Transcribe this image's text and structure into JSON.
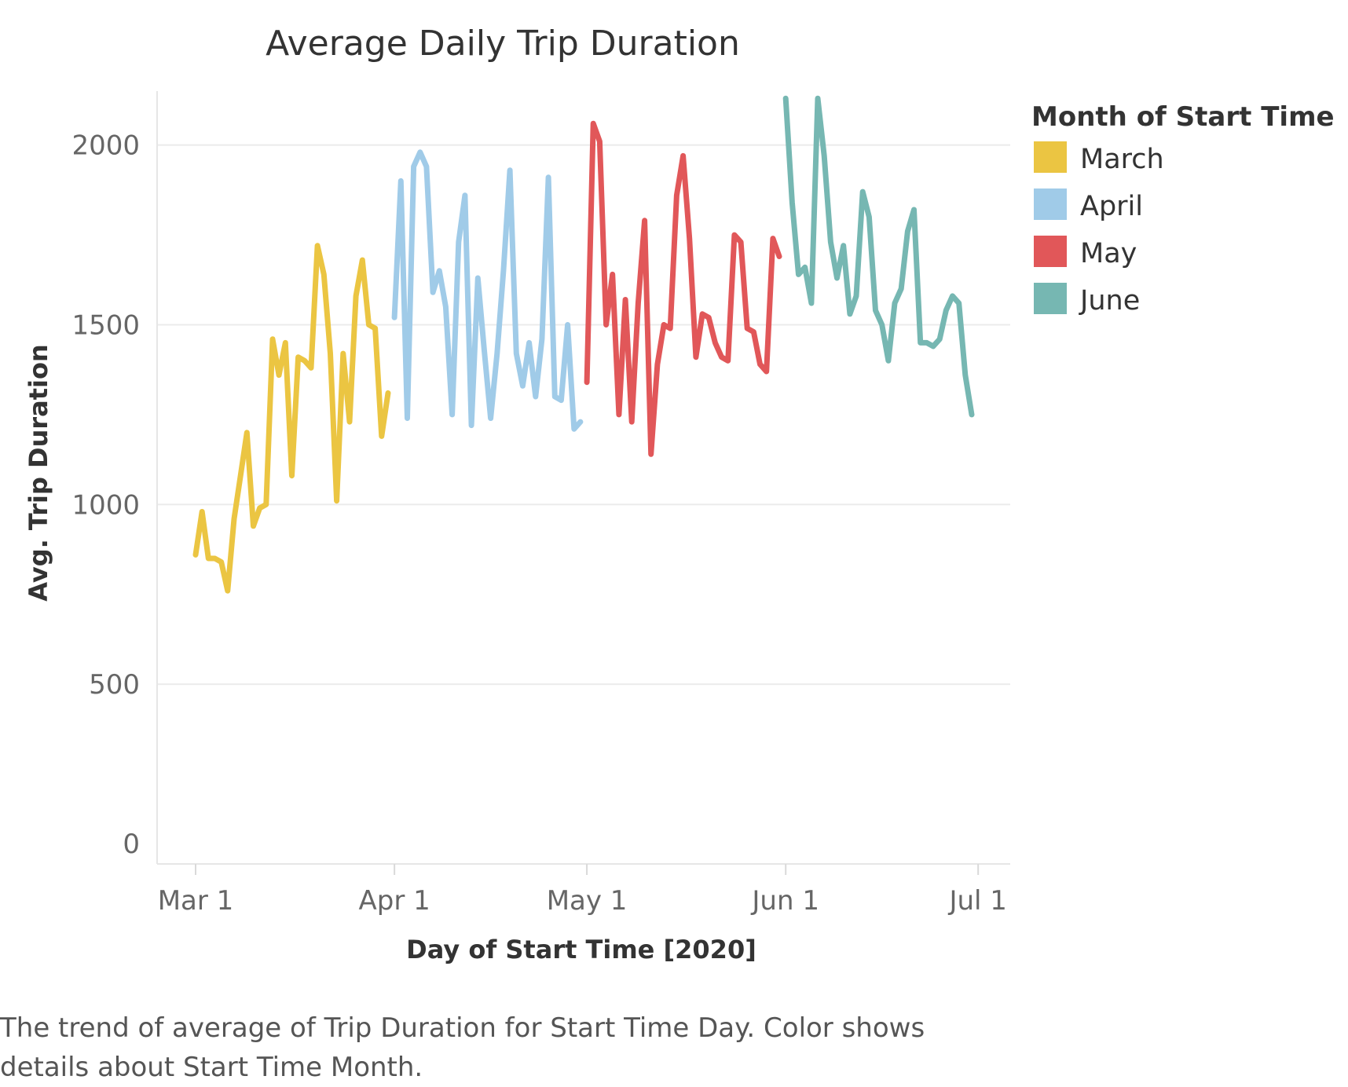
{
  "caption": "The trend of average of Trip Duration for Start Time Day.  Color shows details about Start Time Month.",
  "legend": {
    "title": "Month of Start Time",
    "items": [
      {
        "label": "March",
        "color": "#EBC542"
      },
      {
        "label": "April",
        "color": "#A0CBE8"
      },
      {
        "label": "May",
        "color": "#E15759"
      },
      {
        "label": "June",
        "color": "#76B7B2"
      }
    ]
  },
  "chart_data": {
    "type": "line",
    "title": "Average Daily Trip Duration",
    "xlabel": "Day of Start Time [2020]",
    "ylabel": "Avg. Trip Duration",
    "x_ticks": [
      "Mar 1",
      "Apr 1",
      "May 1",
      "Jun 1",
      "Jul 1"
    ],
    "x_tick_dates": [
      "2020-03-01",
      "2020-04-01",
      "2020-05-01",
      "2020-06-01",
      "2020-07-01"
    ],
    "y_ticks": [
      0,
      500,
      1000,
      1500,
      2000
    ],
    "ylim": [
      0,
      2150
    ],
    "xlim": [
      "2020-02-24",
      "2020-07-06"
    ],
    "grid": true,
    "legend_position": "right",
    "series": [
      {
        "name": "March",
        "color": "#EBC542",
        "points": [
          [
            "2020-03-01",
            860
          ],
          [
            "2020-03-02",
            980
          ],
          [
            "2020-03-03",
            850
          ],
          [
            "2020-03-04",
            850
          ],
          [
            "2020-03-05",
            840
          ],
          [
            "2020-03-06",
            760
          ],
          [
            "2020-03-07",
            960
          ],
          [
            "2020-03-08",
            1080
          ],
          [
            "2020-03-09",
            1200
          ],
          [
            "2020-03-10",
            940
          ],
          [
            "2020-03-11",
            990
          ],
          [
            "2020-03-12",
            1000
          ],
          [
            "2020-03-13",
            1460
          ],
          [
            "2020-03-14",
            1360
          ],
          [
            "2020-03-15",
            1450
          ],
          [
            "2020-03-16",
            1080
          ],
          [
            "2020-03-17",
            1410
          ],
          [
            "2020-03-18",
            1400
          ],
          [
            "2020-03-19",
            1380
          ],
          [
            "2020-03-20",
            1720
          ],
          [
            "2020-03-21",
            1640
          ],
          [
            "2020-03-22",
            1420
          ],
          [
            "2020-03-23",
            1010
          ],
          [
            "2020-03-24",
            1420
          ],
          [
            "2020-03-25",
            1230
          ],
          [
            "2020-03-26",
            1580
          ],
          [
            "2020-03-27",
            1680
          ],
          [
            "2020-03-28",
            1500
          ],
          [
            "2020-03-29",
            1490
          ],
          [
            "2020-03-30",
            1190
          ],
          [
            "2020-03-31",
            1310
          ]
        ]
      },
      {
        "name": "April",
        "color": "#A0CBE8",
        "points": [
          [
            "2020-04-01",
            1520
          ],
          [
            "2020-04-02",
            1900
          ],
          [
            "2020-04-03",
            1240
          ],
          [
            "2020-04-04",
            1940
          ],
          [
            "2020-04-05",
            1980
          ],
          [
            "2020-04-06",
            1940
          ],
          [
            "2020-04-07",
            1590
          ],
          [
            "2020-04-08",
            1650
          ],
          [
            "2020-04-09",
            1550
          ],
          [
            "2020-04-10",
            1250
          ],
          [
            "2020-04-11",
            1730
          ],
          [
            "2020-04-12",
            1860
          ],
          [
            "2020-04-13",
            1220
          ],
          [
            "2020-04-14",
            1630
          ],
          [
            "2020-04-15",
            1430
          ],
          [
            "2020-04-16",
            1240
          ],
          [
            "2020-04-17",
            1420
          ],
          [
            "2020-04-18",
            1650
          ],
          [
            "2020-04-19",
            1930
          ],
          [
            "2020-04-20",
            1420
          ],
          [
            "2020-04-21",
            1330
          ],
          [
            "2020-04-22",
            1450
          ],
          [
            "2020-04-23",
            1300
          ],
          [
            "2020-04-24",
            1460
          ],
          [
            "2020-04-25",
            1910
          ],
          [
            "2020-04-26",
            1300
          ],
          [
            "2020-04-27",
            1290
          ],
          [
            "2020-04-28",
            1500
          ],
          [
            "2020-04-29",
            1210
          ],
          [
            "2020-04-30",
            1230
          ]
        ]
      },
      {
        "name": "May",
        "color": "#E15759",
        "points": [
          [
            "2020-05-01",
            1340
          ],
          [
            "2020-05-02",
            2060
          ],
          [
            "2020-05-03",
            2010
          ],
          [
            "2020-05-04",
            1500
          ],
          [
            "2020-05-05",
            1640
          ],
          [
            "2020-05-06",
            1250
          ],
          [
            "2020-05-07",
            1570
          ],
          [
            "2020-05-08",
            1230
          ],
          [
            "2020-05-09",
            1560
          ],
          [
            "2020-05-10",
            1790
          ],
          [
            "2020-05-11",
            1140
          ],
          [
            "2020-05-12",
            1390
          ],
          [
            "2020-05-13",
            1500
          ],
          [
            "2020-05-14",
            1490
          ],
          [
            "2020-05-15",
            1860
          ],
          [
            "2020-05-16",
            1970
          ],
          [
            "2020-05-17",
            1740
          ],
          [
            "2020-05-18",
            1410
          ],
          [
            "2020-05-19",
            1530
          ],
          [
            "2020-05-20",
            1520
          ],
          [
            "2020-05-21",
            1450
          ],
          [
            "2020-05-22",
            1410
          ],
          [
            "2020-05-23",
            1400
          ],
          [
            "2020-05-24",
            1750
          ],
          [
            "2020-05-25",
            1730
          ],
          [
            "2020-05-26",
            1490
          ],
          [
            "2020-05-27",
            1480
          ],
          [
            "2020-05-28",
            1390
          ],
          [
            "2020-05-29",
            1370
          ],
          [
            "2020-05-30",
            1740
          ],
          [
            "2020-05-31",
            1690
          ]
        ]
      },
      {
        "name": "June",
        "color": "#76B7B2",
        "points": [
          [
            "2020-06-01",
            2130
          ],
          [
            "2020-06-02",
            1840
          ],
          [
            "2020-06-03",
            1640
          ],
          [
            "2020-06-04",
            1660
          ],
          [
            "2020-06-05",
            1560
          ],
          [
            "2020-06-06",
            2130
          ],
          [
            "2020-06-07",
            1970
          ],
          [
            "2020-06-08",
            1730
          ],
          [
            "2020-06-09",
            1630
          ],
          [
            "2020-06-10",
            1720
          ],
          [
            "2020-06-11",
            1530
          ],
          [
            "2020-06-12",
            1580
          ],
          [
            "2020-06-13",
            1870
          ],
          [
            "2020-06-14",
            1800
          ],
          [
            "2020-06-15",
            1540
          ],
          [
            "2020-06-16",
            1500
          ],
          [
            "2020-06-17",
            1400
          ],
          [
            "2020-06-18",
            1560
          ],
          [
            "2020-06-19",
            1600
          ],
          [
            "2020-06-20",
            1760
          ],
          [
            "2020-06-21",
            1820
          ],
          [
            "2020-06-22",
            1450
          ],
          [
            "2020-06-23",
            1450
          ],
          [
            "2020-06-24",
            1440
          ],
          [
            "2020-06-25",
            1460
          ],
          [
            "2020-06-26",
            1540
          ],
          [
            "2020-06-27",
            1580
          ],
          [
            "2020-06-28",
            1560
          ],
          [
            "2020-06-29",
            1360
          ],
          [
            "2020-06-30",
            1250
          ]
        ]
      }
    ]
  }
}
